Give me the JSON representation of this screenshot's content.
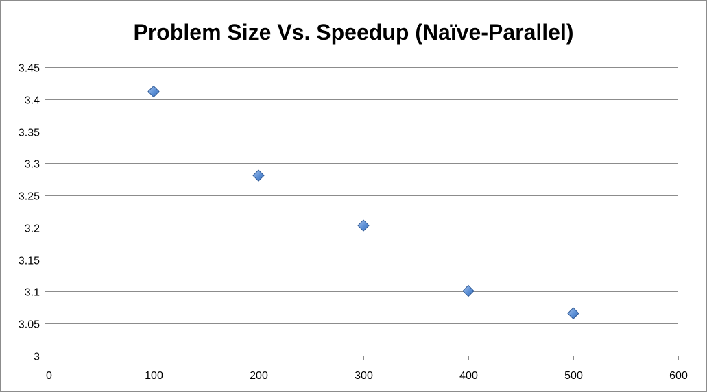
{
  "chart_data": {
    "type": "scatter",
    "title": "Problem Size Vs. Speedup (Naïve-Parallel)",
    "xlabel": "",
    "ylabel": "",
    "xlim": [
      0,
      600
    ],
    "ylim": [
      3,
      3.45
    ],
    "x_ticks": [
      0,
      100,
      200,
      300,
      400,
      500,
      600
    ],
    "y_ticks": [
      3,
      3.05,
      3.1,
      3.15,
      3.2,
      3.25,
      3.3,
      3.35,
      3.4,
      3.45
    ],
    "x_tick_labels": [
      "0",
      "100",
      "200",
      "300",
      "400",
      "500",
      "600"
    ],
    "y_tick_labels": [
      "3",
      "3.05",
      "3.1",
      "3.15",
      "3.2",
      "3.25",
      "3.3",
      "3.35",
      "3.4",
      "3.45"
    ],
    "grid": "horizontal",
    "legend": "none",
    "marker": "diamond",
    "marker_color": "#4f81bd",
    "grid_color": "#8c8c8c",
    "series": [
      {
        "x": [
          100,
          200,
          300,
          400,
          500
        ],
        "y": [
          3.412,
          3.281,
          3.203,
          3.101,
          3.066
        ]
      }
    ]
  }
}
